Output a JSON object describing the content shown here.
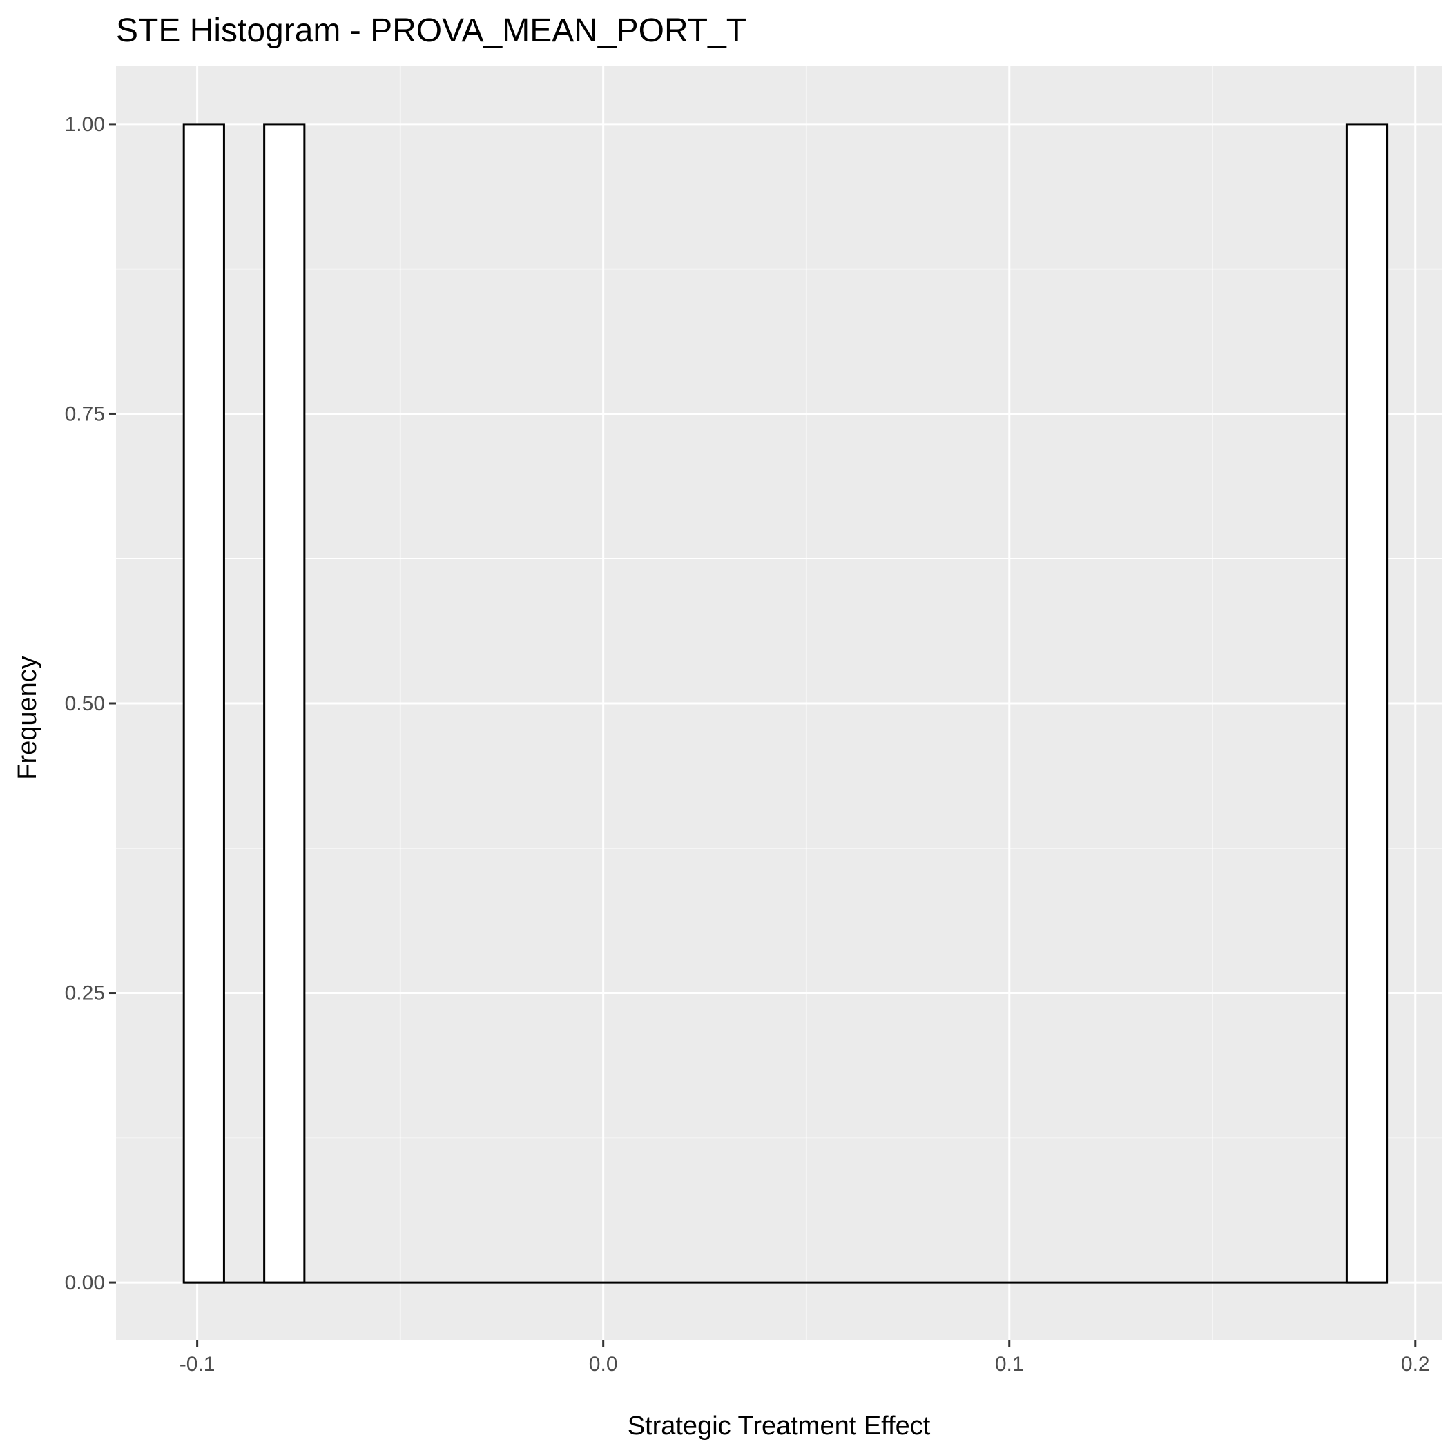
{
  "chart_data": {
    "type": "bar",
    "title": "STE Histogram -  PROVA_MEAN_PORT_T",
    "xlabel": "Strategic Treatment Effect",
    "ylabel": "Frequency",
    "xlim": [
      -0.12,
      0.2065
    ],
    "ylim": [
      -0.05,
      1.05
    ],
    "x_ticks": [
      -0.1,
      0.0,
      0.1,
      0.2
    ],
    "x_tick_labels": [
      "-0.1",
      "0.0",
      "0.1",
      "0.2"
    ],
    "y_ticks": [
      0.0,
      0.25,
      0.5,
      0.75,
      1.0
    ],
    "y_tick_labels": [
      "0.00",
      "0.25",
      "0.50",
      "0.75",
      "1.00"
    ],
    "grid": true,
    "bin_width": 0.00987,
    "bins": [
      {
        "x0": -0.1033,
        "x1": -0.0934,
        "count": 1
      },
      {
        "x0": -0.0835,
        "x1": -0.0736,
        "count": 1
      },
      {
        "x0": 0.1831,
        "x1": 0.193,
        "count": 1
      }
    ],
    "colors": {
      "panel": "#ebebeb",
      "grid": "#ffffff",
      "bar_fill": "#ffffff",
      "bar_stroke": "#000000"
    }
  }
}
